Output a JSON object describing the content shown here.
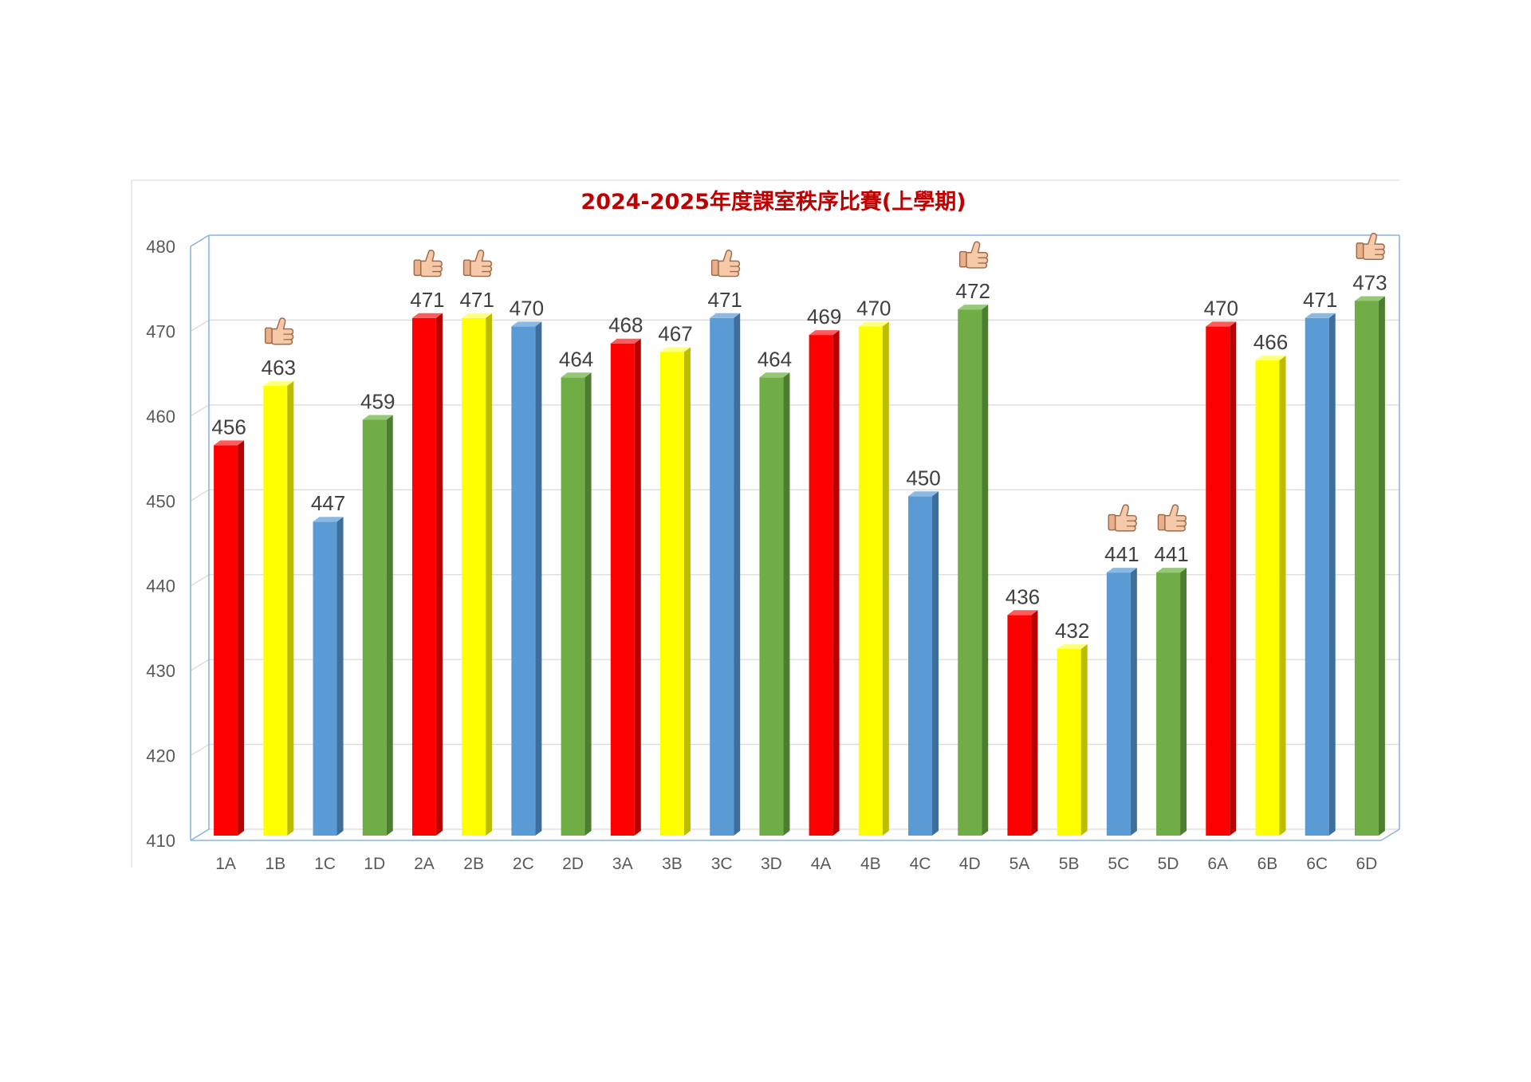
{
  "chart_data": {
    "type": "bar",
    "title": "2024-2025年度課室秩序比賽(上學期)",
    "xlabel": "",
    "ylabel": "",
    "ylim": [
      410,
      480
    ],
    "yticks": [
      410,
      420,
      430,
      440,
      450,
      460,
      470,
      480
    ],
    "grid": true,
    "legend": "none",
    "style": "3d-columns",
    "categories": [
      "1A",
      "1B",
      "1C",
      "1D",
      "2A",
      "2B",
      "2C",
      "2D",
      "3A",
      "3B",
      "3C",
      "3D",
      "4A",
      "4B",
      "4C",
      "4D",
      "5A",
      "5B",
      "5C",
      "5D",
      "6A",
      "6B",
      "6C",
      "6D"
    ],
    "values": [
      456,
      463,
      447,
      459,
      471,
      471,
      470,
      464,
      468,
      467,
      471,
      464,
      469,
      470,
      450,
      472,
      436,
      432,
      441,
      441,
      470,
      466,
      471,
      473
    ],
    "bar_colors": [
      "red",
      "yellow",
      "blue",
      "green",
      "red",
      "yellow",
      "blue",
      "green",
      "red",
      "yellow",
      "blue",
      "green",
      "red",
      "yellow",
      "blue",
      "green",
      "red",
      "yellow",
      "blue",
      "green",
      "red",
      "yellow",
      "blue",
      "green"
    ],
    "color_map": {
      "red": {
        "front": "#ff0000",
        "side": "#b80000",
        "top": "#ff5b5b"
      },
      "yellow": {
        "front": "#ffff00",
        "side": "#bdbd00",
        "top": "#ffff80"
      },
      "blue": {
        "front": "#5b9bd5",
        "side": "#3d6e9c",
        "top": "#8ab9e3"
      },
      "green": {
        "front": "#70ad47",
        "side": "#4d7e2f",
        "top": "#96c878"
      }
    },
    "highlighted_categories": [
      "1B",
      "2A",
      "2B",
      "3C",
      "4D",
      "5C",
      "5D",
      "6D"
    ],
    "highlight_icon": "thumbs-up-icon",
    "grid_color": "#d9d9d9",
    "axis_color": "#8eb4e3"
  }
}
